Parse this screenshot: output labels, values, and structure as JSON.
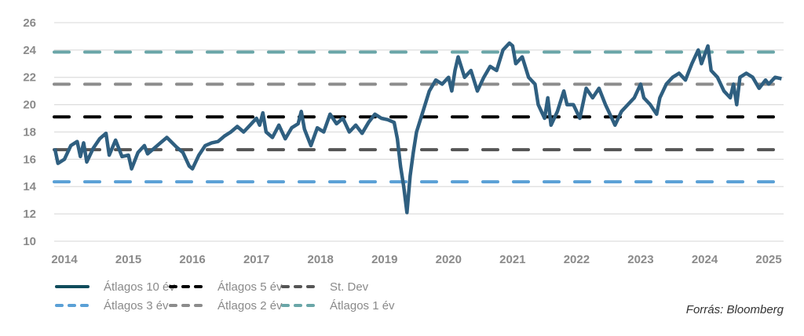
{
  "chart_data": {
    "type": "line",
    "title": "",
    "xlabel": "",
    "ylabel": "",
    "ylim": [
      10,
      26
    ],
    "xlim": [
      2013.85,
      2025.2
    ],
    "y_ticks": [
      "10",
      "12",
      "14",
      "16",
      "18",
      "20",
      "22",
      "24",
      "26"
    ],
    "x_ticks": [
      "2014",
      "2015",
      "2016",
      "2017",
      "2018",
      "2019",
      "2020",
      "2021",
      "2022",
      "2023",
      "2024",
      "2025"
    ],
    "grid": true,
    "legend_placement": "bottom-left",
    "source": "Forrás: Bloomberg",
    "colors": {
      "main": "#2f5f80",
      "legend_main": "#0f4c5c",
      "avg5": "#000000",
      "stdev": "#555555",
      "avg3": "#5aa0d6",
      "avg2": "#8c8c8c",
      "avg1": "#6aa6a8",
      "grid": "#dddddd"
    },
    "series": [
      {
        "name": "Átlagos 10 év",
        "x": [
          2013.85,
          2013.9,
          2014.0,
          2014.1,
          2014.2,
          2014.25,
          2014.3,
          2014.35,
          2014.45,
          2014.55,
          2014.65,
          2014.7,
          2014.8,
          2014.9,
          2015.0,
          2015.05,
          2015.15,
          2015.25,
          2015.3,
          2015.4,
          2015.5,
          2015.6,
          2015.75,
          2015.85,
          2015.95,
          2016.0,
          2016.1,
          2016.2,
          2016.3,
          2016.4,
          2016.5,
          2016.6,
          2016.7,
          2016.8,
          2016.9,
          2017.0,
          2017.05,
          2017.1,
          2017.15,
          2017.25,
          2017.35,
          2017.45,
          2017.55,
          2017.65,
          2017.7,
          2017.75,
          2017.85,
          2017.95,
          2018.05,
          2018.15,
          2018.25,
          2018.35,
          2018.45,
          2018.55,
          2018.65,
          2018.75,
          2018.85,
          2018.95,
          2019.05,
          2019.15,
          2019.2,
          2019.25,
          2019.3,
          2019.35,
          2019.4,
          2019.45,
          2019.5,
          2019.6,
          2019.7,
          2019.8,
          2019.9,
          2020.0,
          2020.05,
          2020.1,
          2020.15,
          2020.25,
          2020.35,
          2020.45,
          2020.55,
          2020.65,
          2020.75,
          2020.85,
          2020.95,
          2021.0,
          2021.05,
          2021.15,
          2021.25,
          2021.35,
          2021.4,
          2021.5,
          2021.55,
          2021.6,
          2021.7,
          2021.8,
          2021.85,
          2021.95,
          2022.05,
          2022.15,
          2022.25,
          2022.35,
          2022.45,
          2022.5,
          2022.6,
          2022.7,
          2022.8,
          2022.9,
          2023.0,
          2023.05,
          2023.15,
          2023.25,
          2023.3,
          2023.4,
          2023.5,
          2023.6,
          2023.7,
          2023.8,
          2023.9,
          2023.95,
          2024.05,
          2024.1,
          2024.2,
          2024.3,
          2024.4,
          2024.45,
          2024.5,
          2024.55,
          2024.65,
          2024.75,
          2024.85,
          2024.95,
          2025.0,
          2025.1,
          2025.2
        ],
        "values": [
          16.8,
          15.7,
          16.0,
          17.0,
          17.3,
          16.2,
          17.2,
          15.8,
          16.8,
          17.5,
          17.9,
          16.3,
          17.4,
          16.2,
          16.3,
          15.3,
          16.5,
          17.0,
          16.4,
          16.8,
          17.2,
          17.6,
          16.9,
          16.5,
          15.5,
          15.3,
          16.3,
          17.0,
          17.2,
          17.3,
          17.7,
          18.0,
          18.4,
          18.0,
          18.5,
          19.0,
          18.5,
          19.4,
          18.0,
          17.6,
          18.5,
          17.5,
          18.3,
          18.6,
          19.5,
          18.2,
          17.0,
          18.3,
          18.0,
          19.3,
          18.6,
          19.0,
          18.0,
          18.5,
          17.9,
          18.7,
          19.3,
          19.0,
          18.9,
          18.7,
          17.5,
          15.5,
          14.0,
          12.1,
          14.8,
          16.5,
          18.0,
          19.5,
          21.0,
          21.8,
          21.5,
          22.0,
          21.0,
          22.5,
          23.5,
          22.0,
          22.5,
          21.0,
          22.0,
          22.8,
          22.5,
          24.0,
          24.5,
          24.3,
          23.0,
          23.5,
          22.0,
          21.5,
          20.0,
          19.0,
          20.5,
          18.5,
          19.5,
          21.0,
          20.0,
          20.0,
          19.0,
          21.2,
          20.5,
          21.2,
          20.0,
          19.5,
          18.5,
          19.5,
          20.0,
          20.5,
          21.5,
          20.5,
          20.0,
          19.3,
          20.5,
          21.5,
          22.0,
          22.3,
          21.8,
          23.0,
          24.0,
          23.0,
          24.3,
          22.5,
          22.0,
          21.0,
          20.5,
          21.5,
          20.0,
          22.0,
          22.3,
          22.0,
          21.2,
          21.8,
          21.5,
          22.0,
          21.9
        ]
      },
      {
        "name": "Átlagos 5 év",
        "value": 19.1
      },
      {
        "name": "St. Dev",
        "value": 16.7
      },
      {
        "name": "Átlagos 3 év",
        "value": 14.35
      },
      {
        "name": "Átlagos 2 év",
        "value": 21.5
      },
      {
        "name": "Átlagos 1 év",
        "value": 23.85
      }
    ]
  }
}
